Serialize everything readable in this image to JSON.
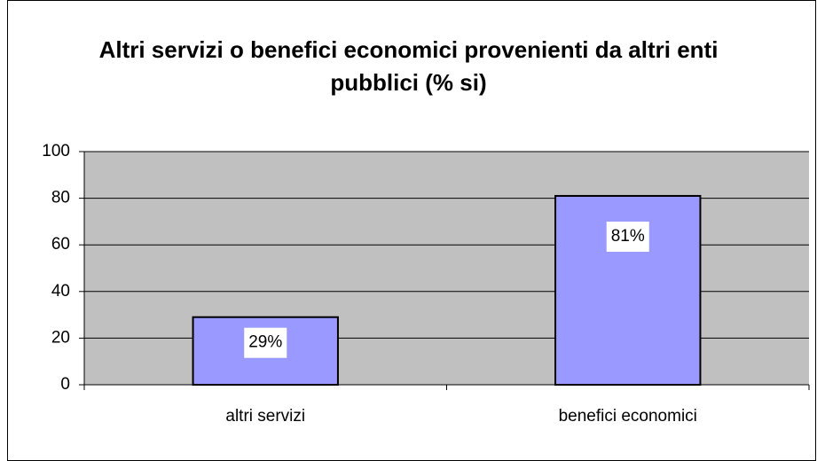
{
  "chart_data": {
    "type": "bar",
    "title": "Altri servizi o benefici economici provenienti da altri enti pubblici (% si)",
    "categories": [
      "altri servizi",
      "benefici economici"
    ],
    "values": [
      29,
      81
    ],
    "value_labels": [
      "29%",
      "81%"
    ],
    "color": "#9999ff",
    "plot_background": "#c0c0c0",
    "ylim": [
      0,
      100
    ],
    "yticks": [
      0,
      20,
      40,
      60,
      80,
      100
    ],
    "grid": true
  }
}
